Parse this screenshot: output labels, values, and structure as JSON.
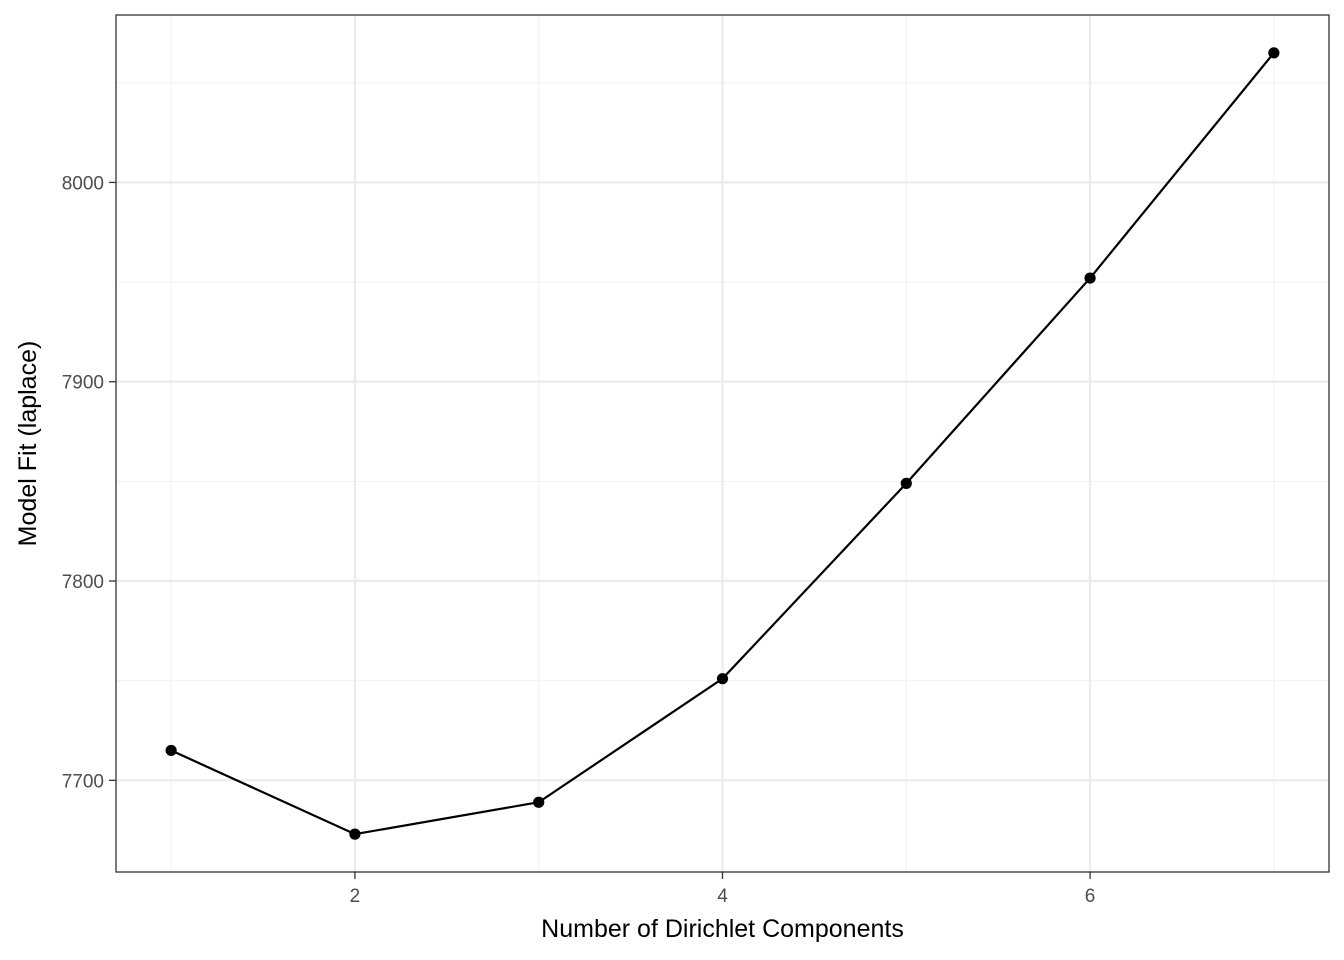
{
  "chart_data": {
    "type": "line",
    "title": "",
    "xlabel": "Number of Dirichlet Components",
    "ylabel": "Model Fit (laplace)",
    "x": [
      1,
      2,
      3,
      4,
      5,
      6,
      7
    ],
    "series": [
      {
        "values": [
          7715,
          7673,
          7689,
          7751,
          7849,
          7952,
          8065
        ]
      }
    ],
    "xlim": [
      0.7,
      7.3
    ],
    "ylim": [
      7654,
      8084
    ],
    "x_ticks": [
      2,
      4,
      6
    ],
    "x_tick_labels": [
      "2",
      "4",
      "6"
    ],
    "x_minor_ticks": [
      1,
      3,
      5,
      7
    ],
    "y_ticks": [
      7700,
      7800,
      7900,
      8000
    ],
    "y_tick_labels": [
      "7700",
      "7800",
      "7900",
      "8000"
    ],
    "y_minor_ticks": [
      7750,
      7850,
      7950,
      8050
    ],
    "grid": true,
    "legend": "none",
    "colors": {
      "line": "#000000",
      "points": "#000000",
      "grid_major": "#ebebeb",
      "grid_minor": "#f2f2f2",
      "border": "#333333",
      "tick_label": "#4d4d4d"
    }
  }
}
